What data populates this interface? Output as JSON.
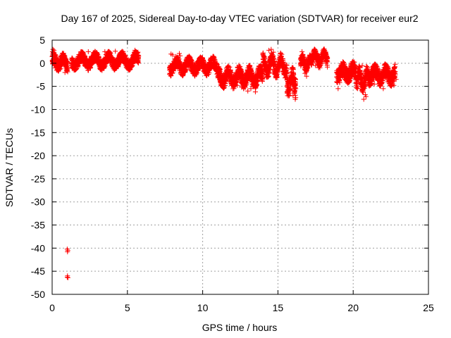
{
  "chart_data": {
    "type": "scatter",
    "title": "Day 167 of 2025, Sidereal Day-to-day VTEC variation (SDTVAR) for receiver eur2",
    "xlabel": "GPS time / hours",
    "ylabel": "SDTVAR / TECUs",
    "xlim": [
      0,
      25
    ],
    "ylim": [
      -50,
      5
    ],
    "xticks": [
      0,
      5,
      10,
      15,
      20,
      25
    ],
    "yticks": [
      5,
      0,
      -5,
      -10,
      -15,
      -20,
      -25,
      -30,
      -35,
      -40,
      -45,
      -50
    ],
    "xtick_labels": [
      "0",
      "5",
      "10",
      "15",
      "20",
      "25"
    ],
    "ytick_labels": [
      "5",
      "0",
      "-5",
      "-10",
      "-15",
      "-20",
      "-25",
      "-30",
      "-35",
      "-40",
      "-45",
      "-50"
    ],
    "grid": true,
    "marker": "+",
    "colors": {
      "series": "#ff0000",
      "axes": "#000000",
      "grid": "#a0a0a0"
    },
    "series": [
      {
        "name": "SDTVAR",
        "segments": [
          {
            "x_start": 0.0,
            "x_end": 1.05,
            "center": 0.3,
            "spread": 2.4,
            "amp": 1.0,
            "period": 0.6
          },
          {
            "x_start": 1.3,
            "x_end": 5.75,
            "center": 0.5,
            "spread": 2.2,
            "amp": 1.0,
            "period": 0.9
          },
          {
            "x_start": 7.8,
            "x_end": 11.0,
            "center": -0.6,
            "spread": 2.4,
            "amp": 1.0,
            "period": 0.8
          },
          {
            "x_start": 11.0,
            "x_end": 14.0,
            "center": -3.0,
            "spread": 2.8,
            "amp": 1.2,
            "period": 0.7
          },
          {
            "x_start": 14.0,
            "x_end": 15.6,
            "center": -0.5,
            "spread": 2.6,
            "amp": 1.5,
            "period": 0.6
          },
          {
            "x_start": 15.6,
            "x_end": 16.2,
            "center": -4.0,
            "spread": 4.0,
            "amp": 1.5,
            "period": 0.5
          },
          {
            "x_start": 16.5,
            "x_end": 17.2,
            "center": 0.0,
            "spread": 2.0,
            "amp": 1.0,
            "period": 0.5
          },
          {
            "x_start": 17.2,
            "x_end": 18.3,
            "center": 1.0,
            "spread": 2.2,
            "amp": 1.0,
            "period": 0.6
          },
          {
            "x_start": 18.9,
            "x_end": 20.2,
            "center": -2.0,
            "spread": 3.0,
            "amp": 1.0,
            "period": 0.7
          },
          {
            "x_start": 20.2,
            "x_end": 21.0,
            "center": -3.5,
            "spread": 3.0,
            "amp": 1.5,
            "period": 0.5
          },
          {
            "x_start": 21.0,
            "x_end": 22.8,
            "center": -2.5,
            "spread": 3.0,
            "amp": 1.0,
            "period": 0.7
          }
        ],
        "points": [
          [
            0.02,
            2.5
          ],
          [
            0.05,
            3.0
          ],
          [
            0.08,
            2.2
          ],
          [
            0.1,
            1.5
          ],
          [
            0.12,
            2.8
          ],
          [
            0.15,
            -0.5
          ],
          [
            0.18,
            1.9
          ],
          [
            0.2,
            -1.0
          ],
          [
            0.25,
            0.8
          ],
          [
            0.3,
            -1.5
          ],
          [
            0.4,
            -0.8
          ],
          [
            0.55,
            0.2
          ],
          [
            0.7,
            1.0
          ],
          [
            0.85,
            -2.0
          ],
          [
            1.0,
            -1.2
          ],
          [
            1.0,
            -40.2
          ],
          [
            1.02,
            -40.8
          ],
          [
            1.04,
            -40.5
          ],
          [
            1.0,
            -46.3
          ],
          [
            1.02,
            -46.0
          ],
          [
            1.05,
            -46.4
          ],
          [
            2.4,
            2.5
          ],
          [
            3.5,
            2.5
          ],
          [
            4.2,
            2.6
          ],
          [
            5.5,
            2.8
          ],
          [
            5.7,
            2.4
          ],
          [
            7.9,
            2.0
          ],
          [
            8.0,
            1.8
          ],
          [
            7.85,
            -1.3
          ],
          [
            8.45,
            2.1
          ],
          [
            8.5,
            1.6
          ],
          [
            12.3,
            -4.8
          ],
          [
            12.6,
            -5.2
          ],
          [
            13.0,
            -6.0
          ],
          [
            13.2,
            -5.5
          ],
          [
            13.5,
            -6.2
          ],
          [
            14.4,
            2.8
          ],
          [
            14.55,
            3.0
          ],
          [
            14.7,
            2.4
          ],
          [
            15.35,
            -1.8
          ],
          [
            15.6,
            -5.0
          ],
          [
            15.8,
            -5.5
          ],
          [
            16.0,
            -7.0
          ],
          [
            16.15,
            -7.8
          ],
          [
            16.1,
            -6.5
          ],
          [
            16.9,
            -2.8
          ],
          [
            16.8,
            -2.2
          ],
          [
            16.6,
            2.5
          ],
          [
            17.3,
            1.5
          ],
          [
            17.5,
            -0.5
          ],
          [
            17.6,
            0.8
          ],
          [
            18.2,
            1.2
          ],
          [
            19.0,
            -5.5
          ],
          [
            19.1,
            -4.2
          ],
          [
            19.3,
            -3.0
          ],
          [
            19.2,
            -0.5
          ],
          [
            20.7,
            -7.8
          ],
          [
            20.8,
            -6.8
          ],
          [
            20.85,
            -7.2
          ],
          [
            20.3,
            -5.5
          ],
          [
            20.6,
            -0.5
          ],
          [
            21.4,
            -4.5
          ],
          [
            22.0,
            -5.5
          ],
          [
            22.3,
            -4.0
          ],
          [
            22.7,
            -4.8
          ],
          [
            22.8,
            -2.5
          ],
          [
            22.85,
            -3.5
          ]
        ]
      }
    ]
  }
}
